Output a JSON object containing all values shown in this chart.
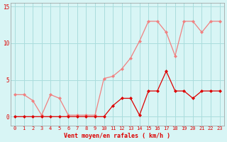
{
  "x": [
    0,
    1,
    2,
    3,
    4,
    5,
    6,
    7,
    8,
    9,
    10,
    11,
    12,
    13,
    14,
    15,
    16,
    17,
    18,
    19,
    20,
    21,
    22,
    23
  ],
  "rafales": [
    3.0,
    3.0,
    2.2,
    0.2,
    3.0,
    2.5,
    0.2,
    0.2,
    0.2,
    0.2,
    5.2,
    5.5,
    6.5,
    8.0,
    10.3,
    13.0,
    13.0,
    11.5,
    8.3,
    13.0,
    13.0,
    11.5,
    13.0,
    13.0
  ],
  "moyen": [
    0.0,
    0.0,
    0.0,
    0.0,
    0.0,
    0.0,
    0.0,
    0.0,
    0.0,
    0.0,
    0.0,
    1.5,
    2.5,
    2.5,
    0.2,
    3.5,
    3.5,
    6.2,
    3.5,
    3.5,
    2.5,
    3.5,
    3.5,
    3.5
  ],
  "color_rafales": "#f08080",
  "color_moyen": "#dd0000",
  "bg_color": "#d8f5f5",
  "grid_color": "#aadddd",
  "xlabel": "Vent moyen/en rafales ( km/h )",
  "yticks": [
    0,
    5,
    10,
    15
  ],
  "ylim": [
    -1.2,
    15.5
  ],
  "xlim": [
    -0.5,
    23.5
  ]
}
